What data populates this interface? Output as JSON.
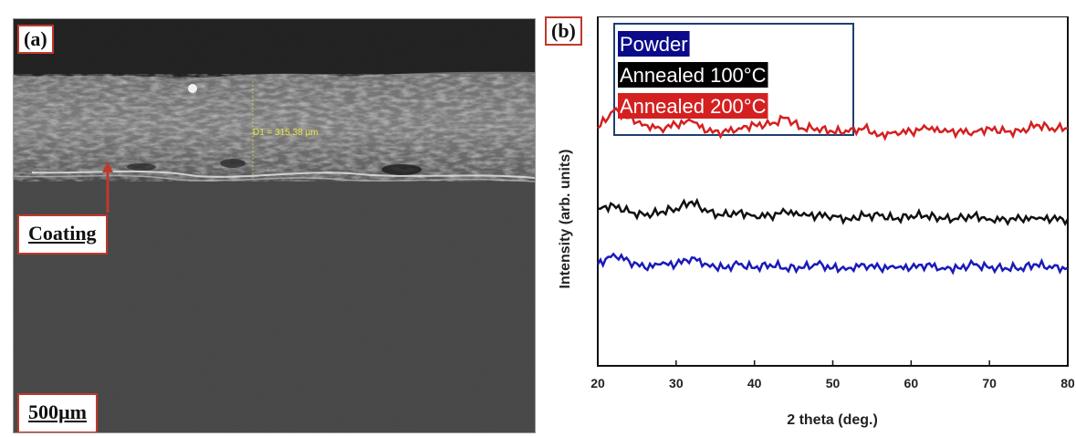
{
  "panel_a": {
    "label": "(a)",
    "coating_label": "Coating",
    "scale_bar": "500µm",
    "measurement": "D1 = 315.38 µm"
  },
  "panel_b": {
    "label": "(b)"
  },
  "chart_data": {
    "type": "line",
    "title": "",
    "xlabel": "2 theta (deg.)",
    "ylabel": "Intensity (arb. units)",
    "xlim": [
      20,
      80
    ],
    "x_ticks": [
      20,
      30,
      40,
      50,
      60,
      70,
      80
    ],
    "x_tick_labels": [
      "20",
      "30",
      "40",
      "50",
      "60",
      "70",
      "80"
    ],
    "y_ticks_shown": false,
    "legend_position": "top-left",
    "ylim": [
      0,
      10
    ],
    "x": [
      20,
      22,
      24,
      26,
      28,
      30,
      32,
      34,
      36,
      38,
      40,
      42,
      44,
      46,
      48,
      50,
      52,
      54,
      56,
      58,
      60,
      62,
      64,
      66,
      68,
      70,
      72,
      74,
      76,
      78,
      80
    ],
    "series": [
      {
        "name": "Powder",
        "color": "#1a1ab8",
        "legend_bg": "#0b0b8a",
        "legend_text_color": "#ffffff",
        "values": [
          2.9,
          3.2,
          3.0,
          2.8,
          2.9,
          2.9,
          3.1,
          2.9,
          2.8,
          2.9,
          2.8,
          2.9,
          2.8,
          2.8,
          2.9,
          2.8,
          2.8,
          2.9,
          2.8,
          2.8,
          2.8,
          2.9,
          2.8,
          2.8,
          2.9,
          2.8,
          2.8,
          2.8,
          2.9,
          2.8,
          2.8
        ]
      },
      {
        "name": "Annealed 100°C",
        "color": "#111111",
        "legend_bg": "#000000",
        "legend_text_color": "#ffffff",
        "values": [
          4.5,
          4.6,
          4.4,
          4.3,
          4.4,
          4.5,
          4.7,
          4.4,
          4.3,
          4.4,
          4.3,
          4.3,
          4.4,
          4.3,
          4.3,
          4.3,
          4.2,
          4.3,
          4.3,
          4.2,
          4.3,
          4.3,
          4.2,
          4.2,
          4.3,
          4.2,
          4.2,
          4.2,
          4.2,
          4.2,
          4.2
        ]
      },
      {
        "name": "Annealed 200°C",
        "color": "#d42020",
        "legend_bg": "#d42020",
        "legend_text_color": "#ffffff",
        "values": [
          6.8,
          7.3,
          7.1,
          6.9,
          6.8,
          6.9,
          7.0,
          6.7,
          6.7,
          6.8,
          6.9,
          6.9,
          7.1,
          6.8,
          6.8,
          6.7,
          6.7,
          6.8,
          6.6,
          6.7,
          6.7,
          6.8,
          6.7,
          6.7,
          6.7,
          6.8,
          6.7,
          6.7,
          6.9,
          6.8,
          6.8
        ]
      }
    ]
  }
}
